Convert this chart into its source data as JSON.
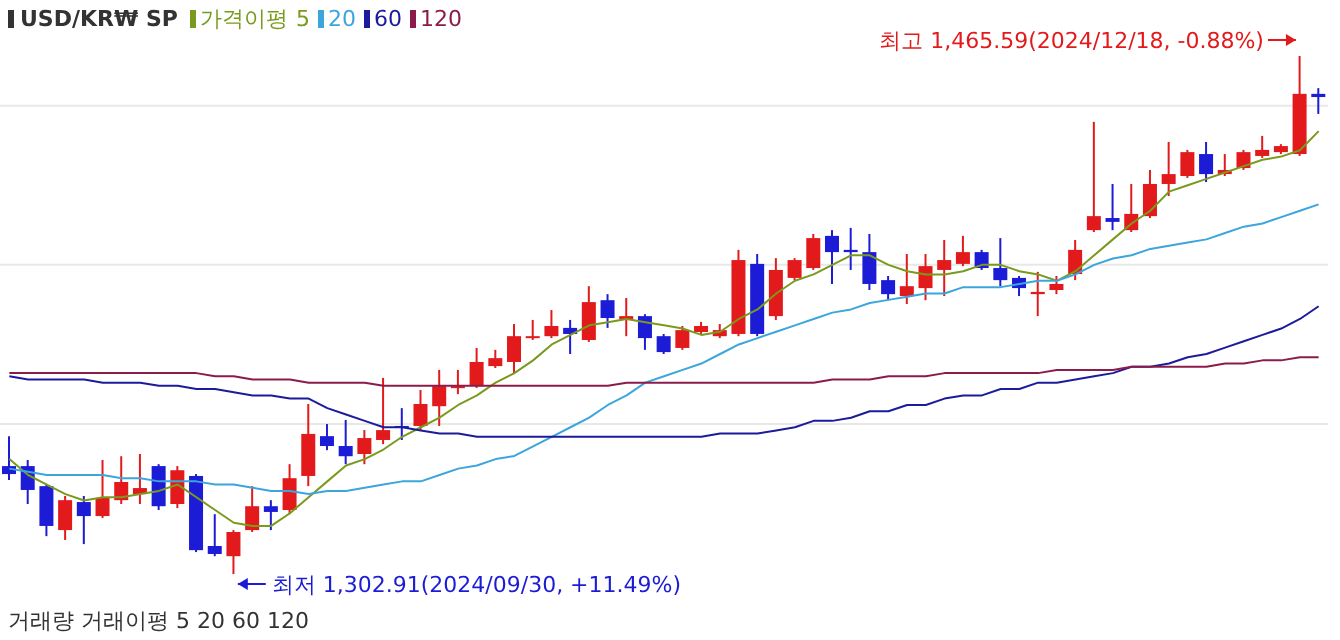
{
  "chart_data": {
    "type": "candlestick",
    "title": "USD/KR₩ SP",
    "legend_title": "가격이평",
    "legend": "top left",
    "grid": "y",
    "tick_labels": false,
    "categories": [
      null,
      null,
      null,
      null,
      null,
      null,
      null,
      null,
      null,
      null,
      null,
      null,
      null,
      null,
      null,
      null,
      null,
      null,
      null,
      null,
      null,
      null,
      null,
      null,
      null,
      null,
      null,
      null,
      null,
      null,
      null,
      null,
      null,
      null,
      null,
      null,
      null,
      null,
      null,
      null,
      null,
      null,
      null,
      null,
      null,
      null,
      null,
      null,
      null,
      null,
      null,
      null,
      null,
      null,
      null,
      null,
      null,
      null,
      null,
      null,
      null,
      null,
      null,
      null,
      null,
      null,
      null,
      null,
      null,
      null,
      null
    ],
    "yticks": [
      {
        "value": 1350,
        "label": null
      },
      {
        "value": 1400,
        "label": null
      },
      {
        "value": 1450,
        "label": null
      }
    ],
    "ohlc": [
      [
        1336.8,
        1346.2,
        1332.4,
        1334.3
      ],
      [
        1336.8,
        1338.7,
        1324.9,
        1329.3
      ],
      [
        1330.5,
        1331.2,
        1314.8,
        1318.0
      ],
      [
        1316.7,
        1327.4,
        1313.6,
        1326.1
      ],
      [
        1325.5,
        1327.4,
        1312.3,
        1321.1
      ],
      [
        1321.1,
        1338.7,
        1320.5,
        1326.8
      ],
      [
        1326.1,
        1339.9,
        1324.9,
        1331.8
      ],
      [
        1328.0,
        1340.6,
        1324.9,
        1329.9
      ],
      [
        1336.8,
        1337.4,
        1323.0,
        1324.2
      ],
      [
        1324.9,
        1336.8,
        1323.6,
        1335.5
      ],
      [
        1333.7,
        1334.3,
        1309.8,
        1310.4
      ],
      [
        1311.7,
        1321.7,
        1308.5,
        1309.2
      ],
      [
        1308.5,
        1316.7,
        1302.91,
        1316.1
      ],
      [
        1316.7,
        1330.5,
        1316.1,
        1324.2
      ],
      [
        1324.2,
        1326.1,
        1316.7,
        1322.4
      ],
      [
        1323.0,
        1337.4,
        1321.7,
        1333.0
      ],
      [
        1333.7,
        1356.3,
        1330.5,
        1346.9
      ],
      [
        1346.2,
        1350.0,
        1341.8,
        1343.1
      ],
      [
        1343.1,
        1351.3,
        1337.4,
        1339.9
      ],
      [
        1340.6,
        1348.1,
        1337.4,
        1345.6
      ],
      [
        1345.0,
        1364.5,
        1343.7,
        1348.1
      ],
      [
        1349.4,
        1355.0,
        1345.0,
        1348.8
      ],
      [
        1349.4,
        1360.7,
        1348.1,
        1356.3
      ],
      [
        1355.6,
        1367.0,
        1349.4,
        1361.9
      ],
      [
        1361.3,
        1367.0,
        1359.4,
        1361.9
      ],
      [
        1361.9,
        1373.9,
        1361.3,
        1369.5
      ],
      [
        1368.2,
        1373.3,
        1367.6,
        1370.7
      ],
      [
        1369.5,
        1381.4,
        1365.7,
        1377.6
      ],
      [
        1377.0,
        1382.7,
        1376.4,
        1377.6
      ],
      [
        1377.6,
        1385.8,
        1377.0,
        1380.8
      ],
      [
        1380.2,
        1382.7,
        1372.0,
        1378.3
      ],
      [
        1376.4,
        1393.3,
        1375.8,
        1388.3
      ],
      [
        1388.9,
        1390.8,
        1380.2,
        1383.3
      ],
      [
        1382.7,
        1389.6,
        1377.6,
        1383.9
      ],
      [
        1383.9,
        1384.5,
        1373.3,
        1377.0
      ],
      [
        1377.6,
        1378.3,
        1372.0,
        1372.6
      ],
      [
        1373.9,
        1380.8,
        1373.3,
        1379.5
      ],
      [
        1378.9,
        1382.1,
        1378.3,
        1380.8
      ],
      [
        1377.6,
        1381.4,
        1377.0,
        1379.5
      ],
      [
        1378.3,
        1404.7,
        1377.6,
        1401.5
      ],
      [
        1400.3,
        1403.4,
        1377.6,
        1378.3
      ],
      [
        1383.9,
        1402.1,
        1382.7,
        1398.4
      ],
      [
        1395.9,
        1402.1,
        1395.2,
        1401.5
      ],
      [
        1399.0,
        1409.7,
        1398.4,
        1408.4
      ],
      [
        1409.1,
        1410.9,
        1394.0,
        1404.0
      ],
      [
        1404.7,
        1411.6,
        1398.4,
        1404.0
      ],
      [
        1404.0,
        1409.7,
        1392.1,
        1394.0
      ],
      [
        1395.2,
        1396.5,
        1388.9,
        1390.8
      ],
      [
        1390.2,
        1403.4,
        1387.7,
        1393.3
      ],
      [
        1392.7,
        1403.4,
        1388.9,
        1399.6
      ],
      [
        1398.4,
        1407.8,
        1390.2,
        1401.5
      ],
      [
        1400.3,
        1409.1,
        1399.6,
        1404.0
      ],
      [
        1404.0,
        1404.7,
        1398.4,
        1399.0
      ],
      [
        1399.0,
        1408.4,
        1393.3,
        1395.2
      ],
      [
        1395.9,
        1396.5,
        1390.2,
        1392.7
      ],
      [
        1390.8,
        1397.8,
        1383.9,
        1391.5
      ],
      [
        1392.1,
        1396.5,
        1390.8,
        1394.0
      ],
      [
        1397.1,
        1407.8,
        1395.2,
        1404.7
      ],
      [
        1410.9,
        1444.9,
        1410.3,
        1415.3
      ],
      [
        1414.7,
        1425.4,
        1410.9,
        1413.5
      ],
      [
        1410.9,
        1425.4,
        1410.3,
        1416.0
      ],
      [
        1415.3,
        1429.8,
        1414.7,
        1425.4
      ],
      [
        1425.4,
        1438.6,
        1421.6,
        1428.5
      ],
      [
        1427.9,
        1436.1,
        1427.3,
        1435.4
      ],
      [
        1434.8,
        1438.6,
        1426.0,
        1428.5
      ],
      [
        1428.5,
        1434.8,
        1427.9,
        1429.8
      ],
      [
        1430.4,
        1436.1,
        1429.8,
        1435.4
      ],
      [
        1434.2,
        1440.5,
        1433.6,
        1436.1
      ],
      [
        1435.4,
        1437.9,
        1434.8,
        1437.3
      ],
      [
        1434.8,
        1465.59,
        1434.2,
        1453.7
      ],
      [
        1453.7,
        1455.5,
        1447.4,
        1452.7
      ]
    ],
    "colors": [
      "#1c1cd6",
      "#1c1cd6",
      "#1c1cd6",
      "#e31a1c",
      "#1c1cd6",
      "#e31a1c",
      "#e31a1c",
      "#e31a1c",
      "#1c1cd6",
      "#e31a1c",
      "#1c1cd6",
      "#1c1cd6",
      "#e31a1c",
      "#e31a1c",
      "#1c1cd6",
      "#e31a1c",
      "#e31a1c",
      "#1c1cd6",
      "#1c1cd6",
      "#e31a1c",
      "#e31a1c",
      "#1c1cd6",
      "#e31a1c",
      "#e31a1c",
      "#e31a1c",
      "#e31a1c",
      "#e31a1c",
      "#e31a1c",
      "#e31a1c",
      "#e31a1c",
      "#1c1cd6",
      "#e31a1c",
      "#1c1cd6",
      "#e31a1c",
      "#1c1cd6",
      "#1c1cd6",
      "#e31a1c",
      "#e31a1c",
      "#e31a1c",
      "#e31a1c",
      "#1c1cd6",
      "#e31a1c",
      "#e31a1c",
      "#e31a1c",
      "#1c1cd6",
      "#1c1cd6",
      "#1c1cd6",
      "#1c1cd6",
      "#e31a1c",
      "#e31a1c",
      "#e31a1c",
      "#e31a1c",
      "#1c1cd6",
      "#1c1cd6",
      "#1c1cd6",
      "#e31a1c",
      "#e31a1c",
      "#e31a1c",
      "#e31a1c",
      "#1c1cd6",
      "#e31a1c",
      "#e31a1c",
      "#e31a1c",
      "#e31a1c",
      "#1c1cd6",
      "#e31a1c",
      "#e31a1c",
      "#e31a1c",
      "#e31a1c",
      "#e31a1c",
      "#1c1cd6"
    ],
    "series": [
      {
        "type": "line",
        "name": "5",
        "color": "#7a9a1e",
        "values": [
          1339,
          1334,
          1331,
          1328,
          1326,
          1327,
          1327,
          1328,
          1329,
          1331,
          1327,
          1323,
          1319,
          1318,
          1318,
          1322,
          1327,
          1332,
          1337,
          1339,
          1342,
          1346,
          1349,
          1352,
          1356,
          1359,
          1363,
          1366,
          1370,
          1375,
          1378,
          1381,
          1382,
          1383,
          1382,
          1381,
          1380,
          1378,
          1379,
          1383,
          1386,
          1391,
          1395,
          1397,
          1400,
          1403,
          1403,
          1400,
          1398,
          1397,
          1397,
          1398,
          1400,
          1400,
          1398,
          1397,
          1395,
          1398,
          1403,
          1408,
          1413,
          1417,
          1423,
          1425,
          1427,
          1429,
          1431,
          1433,
          1434,
          1436,
          1442
        ]
      },
      {
        "type": "line",
        "name": "20",
        "color": "#3ca6dc",
        "values": [
          1336,
          1335,
          1334,
          1334,
          1334,
          1334,
          1333,
          1333,
          1332,
          1332,
          1332,
          1331,
          1331,
          1330,
          1329,
          1329,
          1328,
          1329,
          1329,
          1330,
          1331,
          1332,
          1332,
          1334,
          1336,
          1337,
          1339,
          1340,
          1343,
          1346,
          1349,
          1352,
          1356,
          1359,
          1363,
          1365,
          1367,
          1369,
          1372,
          1375,
          1377,
          1379,
          1381,
          1383,
          1385,
          1386,
          1388,
          1389,
          1390,
          1391,
          1391,
          1393,
          1393,
          1393,
          1394,
          1395,
          1395,
          1397,
          1400,
          1402,
          1403,
          1405,
          1406,
          1407,
          1408,
          1410,
          1412,
          1413,
          1415,
          1417,
          1419
        ]
      },
      {
        "type": "line",
        "name": "60",
        "color": "#1b1b9c",
        "values": [
          1365,
          1364,
          1364,
          1364,
          1364,
          1363,
          1363,
          1363,
          1362,
          1362,
          1361,
          1361,
          1360,
          1359,
          1359,
          1358,
          1358,
          1355,
          1353,
          1351,
          1349,
          1349,
          1348,
          1347,
          1347,
          1346,
          1346,
          1346,
          1346,
          1346,
          1346,
          1346,
          1346,
          1346,
          1346,
          1346,
          1346,
          1346,
          1347,
          1347,
          1347,
          1348,
          1349,
          1351,
          1351,
          1352,
          1354,
          1354,
          1356,
          1356,
          1358,
          1359,
          1359,
          1361,
          1361,
          1363,
          1363,
          1364,
          1365,
          1366,
          1368,
          1368,
          1369,
          1371,
          1372,
          1374,
          1376,
          1378,
          1380,
          1383,
          1387
        ]
      },
      {
        "type": "line",
        "name": "120",
        "color": "#8b1c4a",
        "values": [
          1366,
          1366,
          1366,
          1366,
          1366,
          1366,
          1366,
          1366,
          1366,
          1366,
          1366,
          1365,
          1365,
          1364,
          1364,
          1364,
          1363,
          1363,
          1363,
          1363,
          1362,
          1362,
          1362,
          1362,
          1362,
          1362,
          1362,
          1362,
          1362,
          1362,
          1362,
          1362,
          1362,
          1363,
          1363,
          1363,
          1363,
          1363,
          1363,
          1363,
          1363,
          1363,
          1363,
          1363,
          1364,
          1364,
          1364,
          1365,
          1365,
          1365,
          1366,
          1366,
          1366,
          1366,
          1366,
          1366,
          1367,
          1367,
          1367,
          1367,
          1368,
          1368,
          1368,
          1368,
          1368,
          1369,
          1369,
          1370,
          1370,
          1371,
          1371
        ]
      }
    ],
    "annotations": [
      "최고 1,465.59(2024/12/18, -0.88%)",
      "최저 1,302.91(2024/09/30, +11.49%)",
      "거래량 거래이평 5 20 60 120"
    ]
  }
}
